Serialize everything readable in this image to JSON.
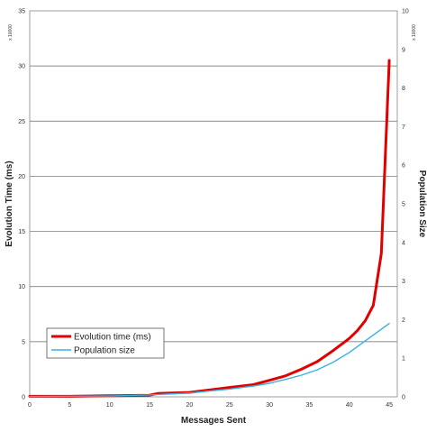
{
  "chart_data": {
    "type": "line",
    "title": "",
    "xlabel": "Messages Sent",
    "ylabel": "Evolution Time (ms)",
    "y2label": "Population Size",
    "y_multiplier": "x 10000",
    "y2_multiplier": "x 10000",
    "xlim": [
      0,
      46
    ],
    "ylim": [
      0,
      35
    ],
    "y2lim": [
      0,
      10
    ],
    "x_ticks": [
      0,
      5,
      10,
      15,
      20,
      25,
      30,
      35,
      40,
      45
    ],
    "y_ticks": [
      0,
      5,
      10,
      15,
      20,
      25,
      30,
      35
    ],
    "y2_ticks": [
      0,
      1,
      2,
      3,
      4,
      5,
      6,
      7,
      8,
      9,
      10
    ],
    "grid": "horizontal major",
    "legend_position": "lower-left",
    "series": [
      {
        "name": "Evolution time (ms)",
        "axis": "left",
        "color": "#e00000",
        "x": [
          0,
          5,
          10,
          15,
          16,
          20,
          25,
          28,
          30,
          32,
          34,
          36,
          38,
          40,
          41,
          42,
          43,
          44,
          45
        ],
        "y": [
          0.05,
          0.05,
          0.1,
          0.15,
          0.3,
          0.4,
          0.85,
          1.1,
          1.5,
          1.9,
          2.5,
          3.2,
          4.2,
          5.3,
          6.0,
          6.9,
          8.3,
          13.0,
          30.5
        ]
      },
      {
        "name": "Population size",
        "axis": "right",
        "color": "#3ab0e0",
        "x": [
          0,
          10,
          15,
          20,
          25,
          28,
          30,
          32,
          34,
          36,
          38,
          40,
          42,
          44,
          45
        ],
        "y": [
          0.01,
          0.02,
          0.05,
          0.1,
          0.2,
          0.28,
          0.35,
          0.45,
          0.56,
          0.7,
          0.9,
          1.15,
          1.45,
          1.75,
          1.9
        ]
      }
    ]
  }
}
